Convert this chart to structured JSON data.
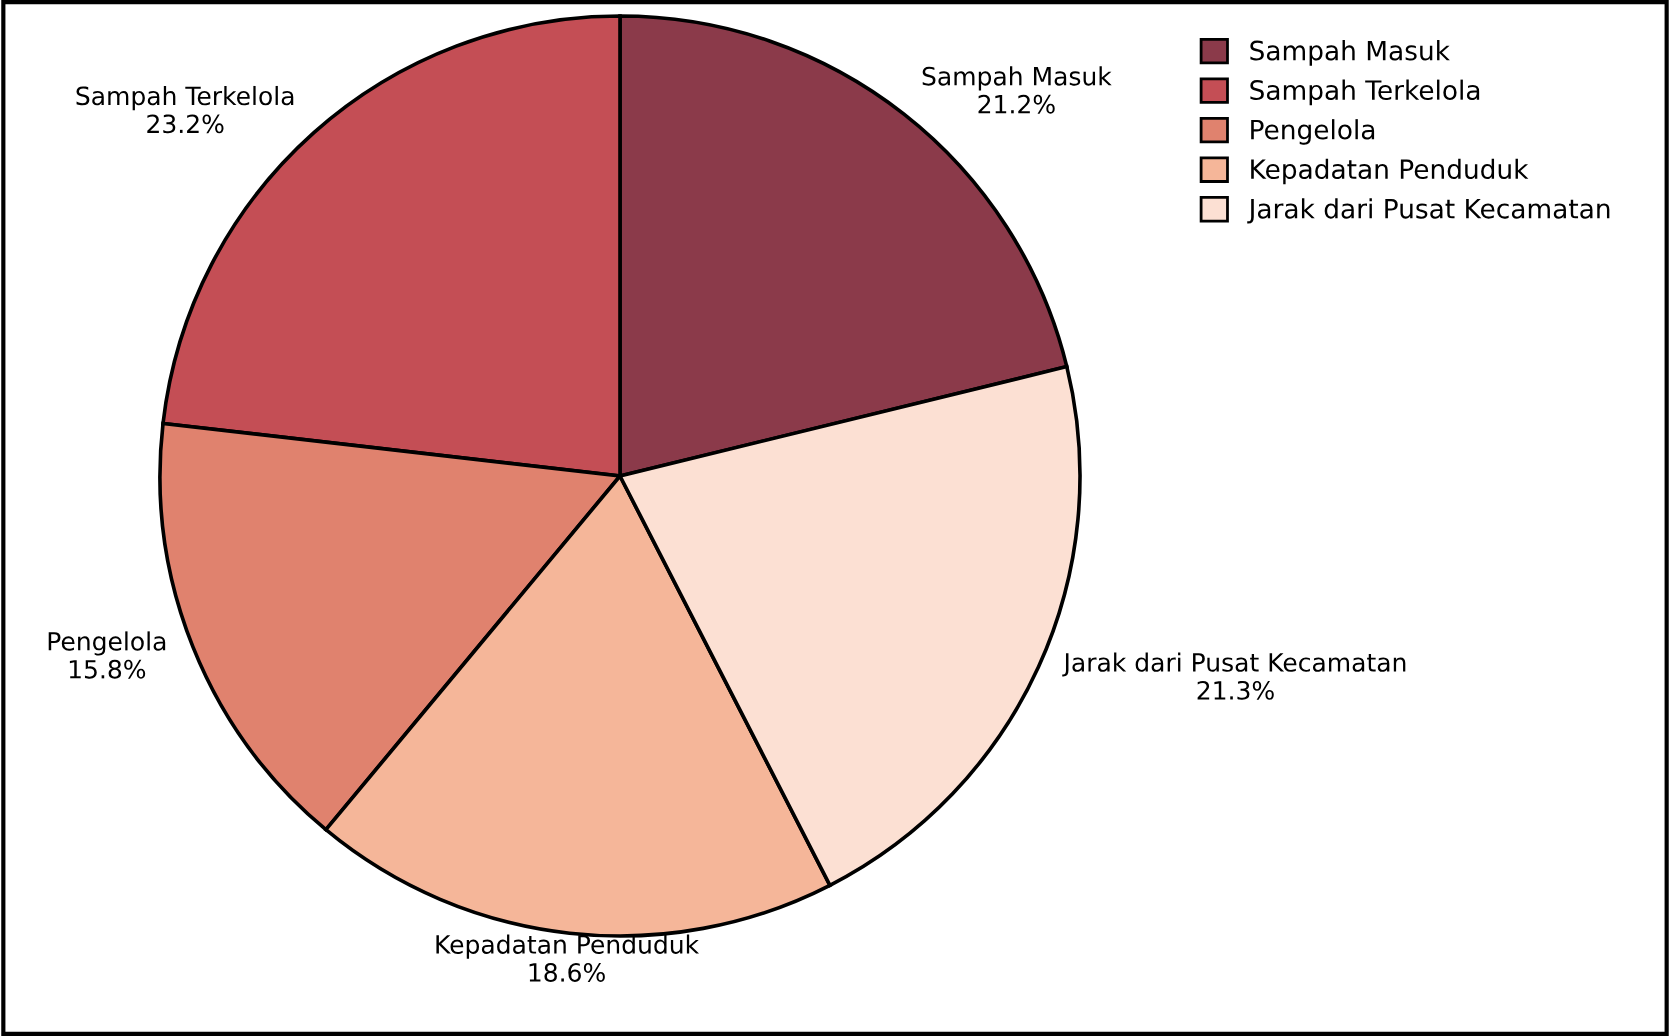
{
  "chart_data": {
    "type": "pie",
    "categories": [
      "Sampah Masuk",
      "Sampah Terkelola",
      "Pengelola",
      "Kepadatan Penduduk",
      "Jarak dari Pusat Kecamatan"
    ],
    "values": [
      21.2,
      23.2,
      15.8,
      18.6,
      21.3
    ],
    "colors": [
      "#8b3a4a",
      "#c44e55",
      "#e0826e",
      "#f5b699",
      "#fce0d3"
    ],
    "value_labels": [
      "21.2%",
      "23.2%",
      "15.8%",
      "18.6%",
      "21.3%"
    ],
    "legend": "top right"
  }
}
